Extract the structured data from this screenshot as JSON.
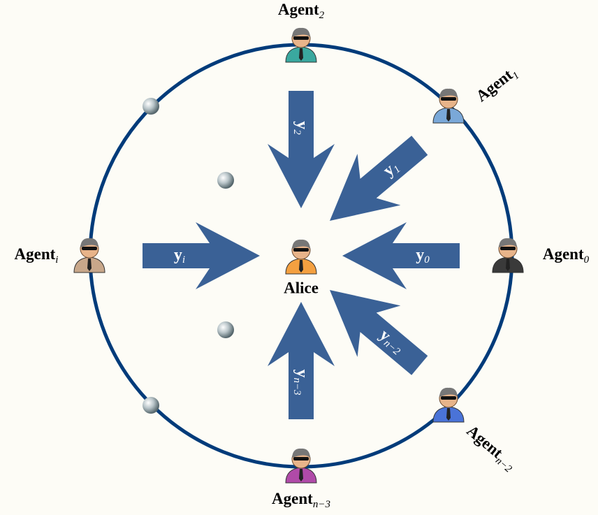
{
  "agents": [
    {
      "label": "Agent",
      "subscript": "2"
    },
    {
      "label": "Agent",
      "subscript": "1"
    },
    {
      "label": "Agent",
      "subscript": "0"
    },
    {
      "label": "Agent",
      "subscript": "i"
    },
    {
      "label": "Agent",
      "subscript": "n−2"
    },
    {
      "label": "Agent",
      "subscript": "n−3"
    }
  ],
  "center": {
    "label": "Alice"
  },
  "messages": [
    {
      "label": "y",
      "subscript": "2"
    },
    {
      "label": "y",
      "subscript": "1"
    },
    {
      "label": "y",
      "subscript": "0"
    },
    {
      "label": "y",
      "subscript": "i"
    },
    {
      "label": "y",
      "subscript": "n−2"
    },
    {
      "label": "y",
      "subscript": "n−3"
    }
  ]
}
